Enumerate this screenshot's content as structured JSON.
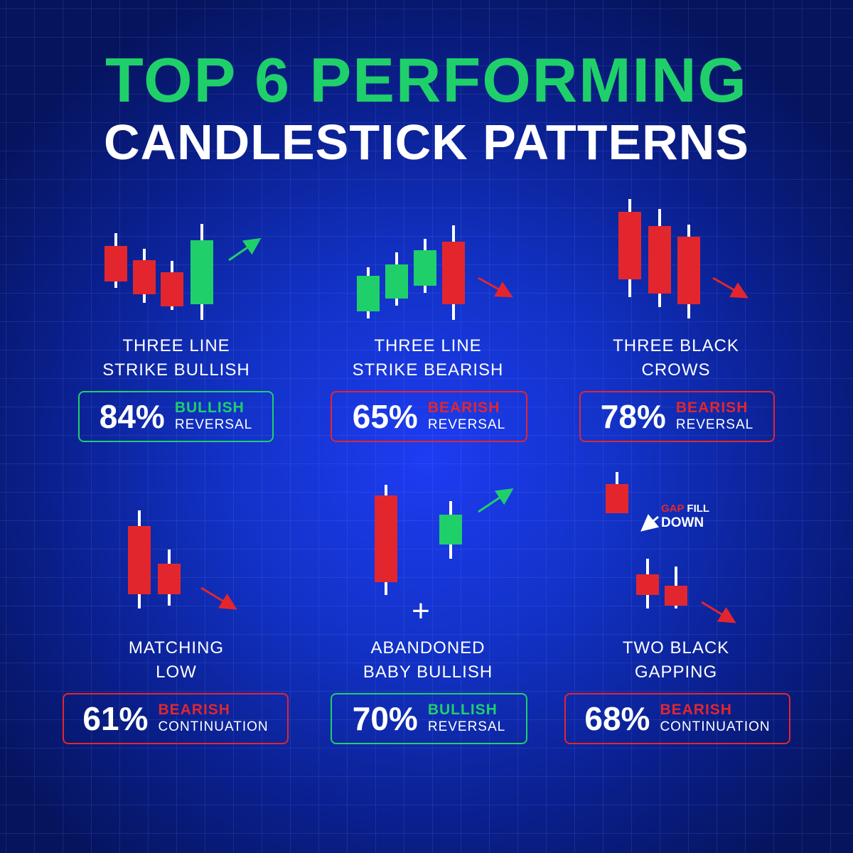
{
  "title_line1": "TOP 6 PERFORMING",
  "title_line2": "CANDLESTICK PATTERNS",
  "colors": {
    "green": "#1fd06a",
    "red": "#e3262d",
    "text": "#ffffff"
  },
  "patterns": [
    {
      "name_line1": "THREE LINE",
      "name_line2": "STRIKE BULLISH",
      "percent": "84%",
      "sentiment": "BULLISH",
      "type": "REVERSAL",
      "sentiment_color": "#1fd06a"
    },
    {
      "name_line1": "THREE LINE",
      "name_line2": "STRIKE BEARISH",
      "percent": "65%",
      "sentiment": "BEARISH",
      "type": "REVERSAL",
      "sentiment_color": "#e3262d"
    },
    {
      "name_line1": "THREE BLACK",
      "name_line2": "CROWS",
      "percent": "78%",
      "sentiment": "BEARISH",
      "type": "REVERSAL",
      "sentiment_color": "#e3262d"
    },
    {
      "name_line1": "MATCHING",
      "name_line2": "LOW",
      "percent": "61%",
      "sentiment": "BEARISH",
      "type": "CONTINUATION",
      "sentiment_color": "#e3262d"
    },
    {
      "name_line1": "ABANDONED",
      "name_line2": "BABY BULLISH",
      "percent": "70%",
      "sentiment": "BULLISH",
      "type": "REVERSAL",
      "sentiment_color": "#1fd06a"
    },
    {
      "name_line1": "TWO BLACK",
      "name_line2": "GAPPING",
      "percent": "68%",
      "sentiment": "BEARISH",
      "type": "CONTINUATION",
      "sentiment_color": "#e3262d"
    }
  ],
  "gap_note": {
    "gap": "GAP",
    "fill": " FILL",
    "down": "DOWN"
  },
  "plus_sign": "+"
}
